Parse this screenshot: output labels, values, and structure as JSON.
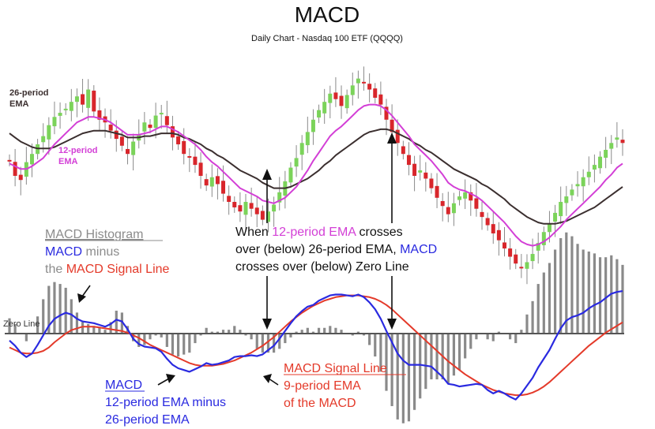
{
  "colors": {
    "up": "#7bd35a",
    "down": "#d8262b",
    "wick": "#8a8a8a",
    "ema26": "#3b2f2f",
    "ema12": "#d33fd6",
    "macd": "#2a2ae0",
    "signal": "#e43a2a",
    "hist": "#8a8a8a",
    "zero": "#555555",
    "text": "#111111",
    "gray_text": "#8c8c8c"
  },
  "chart_data": {
    "type": "line",
    "title": "MACD",
    "subtitle": "Daily Chart - Nasdaq 100 ETF (QQQQ)",
    "price_panel": {
      "series_labels": {
        "ema26": "26-period\nEMA",
        "ema12": "12-period\nEMA"
      },
      "candles_count": 110,
      "close": [
        31.6,
        30.5,
        30.2,
        31.5,
        32.1,
        32.8,
        33.4,
        34.2,
        34.8,
        35.1,
        35.4,
        35.9,
        36.3,
        35.7,
        36.8,
        35.2,
        34.6,
        34.4,
        33.8,
        33.2,
        32.7,
        32.1,
        33.0,
        33.5,
        34.4,
        34.0,
        34.9,
        35.1,
        34.2,
        33.3,
        32.8,
        32.1,
        31.9,
        31.3,
        30.5,
        29.8,
        30.4,
        29.9,
        29.2,
        28.6,
        28.2,
        27.9,
        28.6,
        28.1,
        27.7,
        27.3,
        27.9,
        28.4,
        29.3,
        30.1,
        31.1,
        31.8,
        32.9,
        33.7,
        34.6,
        35.3,
        35.9,
        36.5,
        36.1,
        35.6,
        36.4,
        37.1,
        37.6,
        37.3,
        36.8,
        36.2,
        35.7,
        34.6,
        33.7,
        32.9,
        32.1,
        31.3,
        30.5,
        30.9,
        30.3,
        29.6,
        28.9,
        28.3,
        27.7,
        28.5,
        29.0,
        29.3,
        28.7,
        28.1,
        27.5,
        26.9,
        26.3,
        25.8,
        25.2,
        24.6,
        24.1,
        23.8,
        24.2,
        24.8,
        25.6,
        26.4,
        27.0,
        27.8,
        28.6,
        29.0,
        29.5,
        29.9,
        30.4,
        30.8,
        31.3,
        31.9,
        32.4,
        32.9,
        33.3,
        32.9
      ],
      "ema12": [
        31.4,
        31.2,
        31.0,
        31.0,
        31.2,
        31.5,
        31.8,
        32.3,
        32.8,
        33.2,
        33.6,
        34.0,
        34.4,
        34.6,
        34.8,
        34.8,
        34.7,
        34.6,
        34.4,
        34.1,
        33.8,
        33.5,
        33.5,
        33.5,
        33.6,
        33.7,
        33.9,
        34.1,
        34.1,
        33.9,
        33.7,
        33.4,
        33.1,
        32.8,
        32.4,
        31.9,
        31.5,
        31.2,
        30.8,
        30.4,
        30.0,
        29.6,
        29.4,
        29.2,
        29.0,
        28.7,
        28.6,
        28.5,
        28.7,
        28.9,
        29.3,
        29.7,
        30.3,
        30.9,
        31.6,
        32.2,
        32.8,
        33.4,
        33.8,
        34.1,
        34.5,
        34.9,
        35.3,
        35.6,
        35.7,
        35.7,
        35.6,
        35.3,
        34.9,
        34.4,
        33.9,
        33.4,
        32.8,
        32.4,
        32.0,
        31.6,
        31.1,
        30.6,
        30.0,
        29.7,
        29.5,
        29.4,
        29.2,
        29.0,
        28.7,
        28.3,
        27.9,
        27.5,
        27.1,
        26.6,
        26.1,
        25.7,
        25.5,
        25.4,
        25.5,
        25.7,
        26.0,
        26.4,
        26.8,
        27.3,
        27.7,
        28.1,
        28.5,
        28.9,
        29.3,
        29.7,
        30.2,
        30.6,
        31.1,
        31.4
      ],
      "ema26": [
        33.6,
        33.3,
        33.0,
        32.8,
        32.6,
        32.5,
        32.5,
        32.5,
        32.6,
        32.8,
        33.0,
        33.2,
        33.4,
        33.6,
        33.7,
        33.8,
        33.8,
        33.8,
        33.7,
        33.6,
        33.5,
        33.3,
        33.3,
        33.3,
        33.4,
        33.4,
        33.5,
        33.6,
        33.6,
        33.6,
        33.5,
        33.3,
        33.2,
        33.0,
        32.8,
        32.5,
        32.3,
        32.0,
        31.8,
        31.5,
        31.2,
        30.9,
        30.7,
        30.5,
        30.3,
        30.0,
        29.8,
        29.6,
        29.6,
        29.6,
        29.7,
        29.9,
        30.1,
        30.3,
        30.6,
        30.9,
        31.3,
        31.6,
        32.0,
        32.3,
        32.6,
        32.9,
        33.2,
        33.5,
        33.7,
        33.8,
        33.9,
        33.9,
        33.8,
        33.6,
        33.4,
        33.2,
        32.9,
        32.7,
        32.4,
        32.2,
        31.9,
        31.6,
        31.3,
        31.0,
        30.8,
        30.6,
        30.4,
        30.2,
        29.9,
        29.7,
        29.4,
        29.1,
        28.8,
        28.4,
        28.1,
        27.8,
        27.5,
        27.3,
        27.1,
        27.0,
        27.0,
        27.0,
        27.1,
        27.2,
        27.4,
        27.6,
        27.8,
        28.0,
        28.2,
        28.5,
        28.8,
        29.1,
        29.4,
        29.7
      ]
    },
    "macd_panel": {
      "zero_label": "Zero Line",
      "macd": [
        -0.8,
        -1.4,
        -2.2,
        -2.7,
        -2.3,
        -1.3,
        -0.2,
        0.9,
        1.7,
        2.1,
        2.4,
        2.2,
        1.7,
        1.4,
        1.3,
        1.2,
        1.0,
        0.8,
        1.1,
        1.6,
        1.4,
        0.5,
        -0.6,
        -1.2,
        -1.5,
        -1.6,
        -1.7,
        -2.1,
        -2.9,
        -3.6,
        -4.0,
        -4.2,
        -4.4,
        -4.1,
        -3.8,
        -3.4,
        -3.6,
        -3.5,
        -3.3,
        -3.1,
        -2.7,
        -2.6,
        -2.6,
        -2.5,
        -2.6,
        -2.4,
        -1.9,
        -1.4,
        -0.6,
        0.3,
        1.2,
        2.0,
        2.6,
        3.1,
        3.3,
        3.8,
        4.1,
        4.4,
        4.5,
        4.5,
        4.4,
        4.3,
        4.5,
        4.2,
        3.6,
        2.8,
        1.7,
        0.3,
        -1.0,
        -2.3,
        -3.1,
        -3.6,
        -3.6,
        -3.6,
        -3.7,
        -3.8,
        -4.4,
        -5.0,
        -5.8,
        -5.9,
        -6.1,
        -6.0,
        -5.9,
        -5.8,
        -5.9,
        -6.5,
        -6.9,
        -6.6,
        -6.9,
        -7.3,
        -7.6,
        -6.9,
        -6.0,
        -5.1,
        -3.9,
        -2.9,
        -1.9,
        -0.6,
        0.6,
        1.5,
        1.9,
        2.1,
        2.4,
        2.9,
        3.3,
        3.6,
        4.1,
        4.6,
        4.8,
        4.9
      ],
      "signal": [
        -1.6,
        -1.9,
        -2.2,
        -2.3,
        -2.3,
        -2.2,
        -2.0,
        -1.6,
        -1.0,
        -0.5,
        0.0,
        0.4,
        0.6,
        0.8,
        0.8,
        0.8,
        0.7,
        0.6,
        0.5,
        0.4,
        0.3,
        0.1,
        -0.2,
        -0.5,
        -0.9,
        -1.3,
        -1.6,
        -1.9,
        -2.2,
        -2.5,
        -2.8,
        -3.1,
        -3.4,
        -3.6,
        -3.7,
        -3.7,
        -3.7,
        -3.6,
        -3.5,
        -3.3,
        -3.1,
        -2.8,
        -2.5,
        -2.2,
        -1.8,
        -1.4,
        -0.9,
        -0.4,
        0.2,
        0.8,
        1.4,
        1.9,
        2.4,
        2.8,
        3.2,
        3.5,
        3.8,
        4.0,
        4.2,
        4.3,
        4.4,
        4.4,
        4.4,
        4.3,
        4.2,
        4.0,
        3.7,
        3.3,
        2.8,
        2.2,
        1.6,
        1.0,
        0.4,
        -0.2,
        -0.8,
        -1.4,
        -2.0,
        -2.6,
        -3.2,
        -3.7,
        -4.2,
        -4.7,
        -5.1,
        -5.5,
        -5.9,
        -6.2,
        -6.5,
        -6.7,
        -6.9,
        -7.0,
        -7.1,
        -7.1,
        -7.0,
        -6.8,
        -6.5,
        -6.1,
        -5.6,
        -5.0,
        -4.4,
        -3.8,
        -3.2,
        -2.6,
        -2.0,
        -1.4,
        -0.9,
        -0.4,
        0.1,
        0.5,
        0.9,
        1.3
      ]
    }
  },
  "annotations": {
    "hist_title": "MACD Histogram",
    "hist_line2_a": "MACD",
    "hist_line2_b": " minus",
    "hist_line3_a": "the ",
    "hist_line3_b": "MACD Signal Line",
    "cross_l1_a": "When ",
    "cross_l1_b": "12-period EMA",
    "cross_l1_c": " crosses",
    "cross_l2_a": "over (below) 26-period EMA, ",
    "cross_l2_b": "MACD",
    "cross_l3": "crosses over (below) Zero Line",
    "macd_title": "MACD",
    "macd_l2": "12-period EMA minus",
    "macd_l3": "26-period EMA",
    "sig_title": "MACD Signal Line",
    "sig_l2": "9-period EMA",
    "sig_l3": "of the MACD"
  }
}
